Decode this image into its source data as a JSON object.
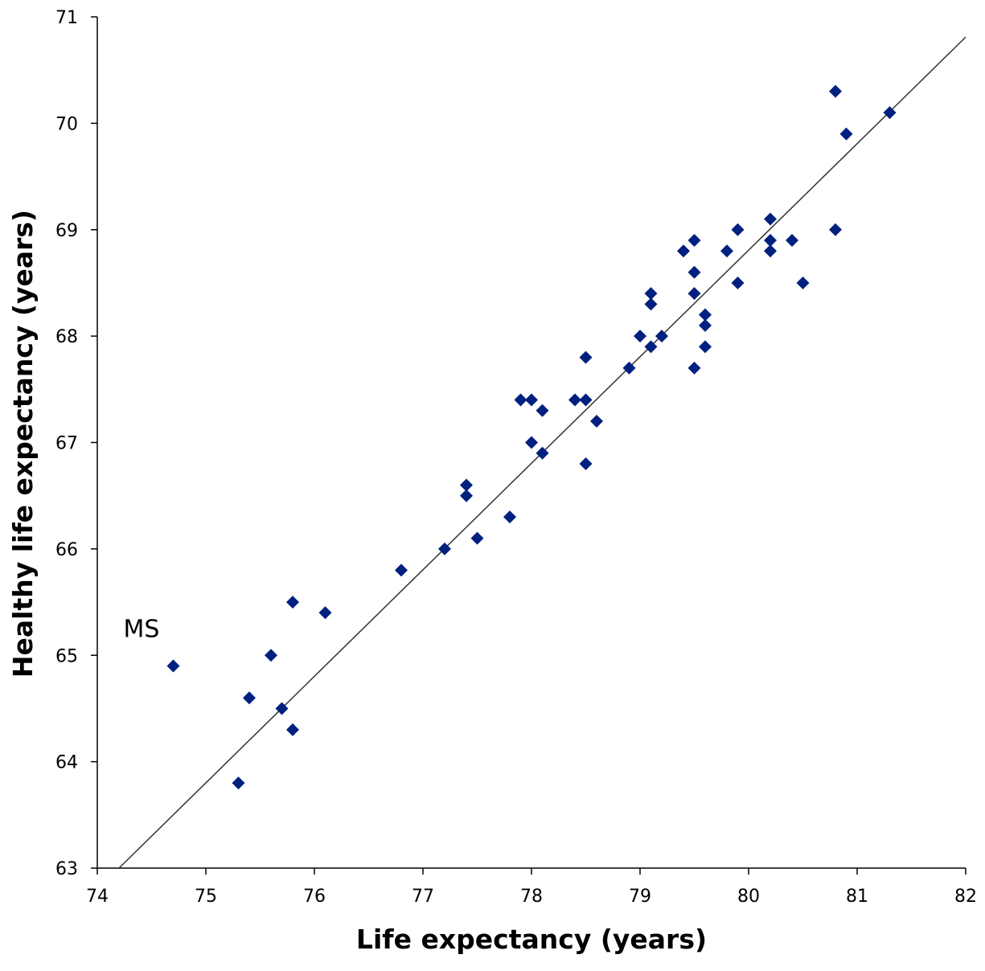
{
  "chart_data": {
    "type": "scatter",
    "x_label": "Life expectancy (years)",
    "y_label": "Healthy life expectancy (years)",
    "annotations": [
      "MS"
    ],
    "series": [
      {
        "color": "#002080",
        "x": [
          74.7,
          75.3,
          75.4,
          75.6,
          75.7,
          75.8,
          75.8,
          76.1,
          76.8,
          77.2,
          77.4,
          77.4,
          77.5,
          77.8,
          77.9,
          78.0,
          78.0,
          78.1,
          78.1,
          78.4,
          78.5,
          78.5,
          78.5,
          78.6,
          78.9,
          79.0,
          79.1,
          79.1,
          79.1,
          79.2,
          79.4,
          79.5,
          79.5,
          79.5,
          79.5,
          79.6,
          79.6,
          79.6,
          79.8,
          79.9,
          79.9,
          80.2,
          80.2,
          80.2,
          80.4,
          80.5,
          80.8,
          80.8,
          80.9,
          81.3
        ],
        "values": [
          64.9,
          63.8,
          64.6,
          65.0,
          64.5,
          65.5,
          64.3,
          65.4,
          65.8,
          66.0,
          66.6,
          66.5,
          66.1,
          66.3,
          67.4,
          67.4,
          67.0,
          67.3,
          66.9,
          67.4,
          67.8,
          67.4,
          66.8,
          67.2,
          67.7,
          68.0,
          68.4,
          68.3,
          67.9,
          68.0,
          68.8,
          68.9,
          68.6,
          68.4,
          67.7,
          68.2,
          68.1,
          67.9,
          68.8,
          69.0,
          68.5,
          69.1,
          68.9,
          68.8,
          68.9,
          68.5,
          70.3,
          69.0,
          69.9,
          70.1
        ]
      }
    ],
    "trend_line": {
      "color": "#333333",
      "x": [
        74.2,
        82
      ],
      "values": [
        63,
        70.81
      ]
    },
    "xlim": [
      74,
      82
    ],
    "xticks": [
      74,
      75,
      76,
      77,
      78,
      79,
      80,
      81,
      82
    ],
    "ylim": [
      63,
      71
    ],
    "yticks": [
      63,
      64,
      65,
      66,
      67,
      68,
      69,
      70,
      71
    ],
    "grid": false
  }
}
